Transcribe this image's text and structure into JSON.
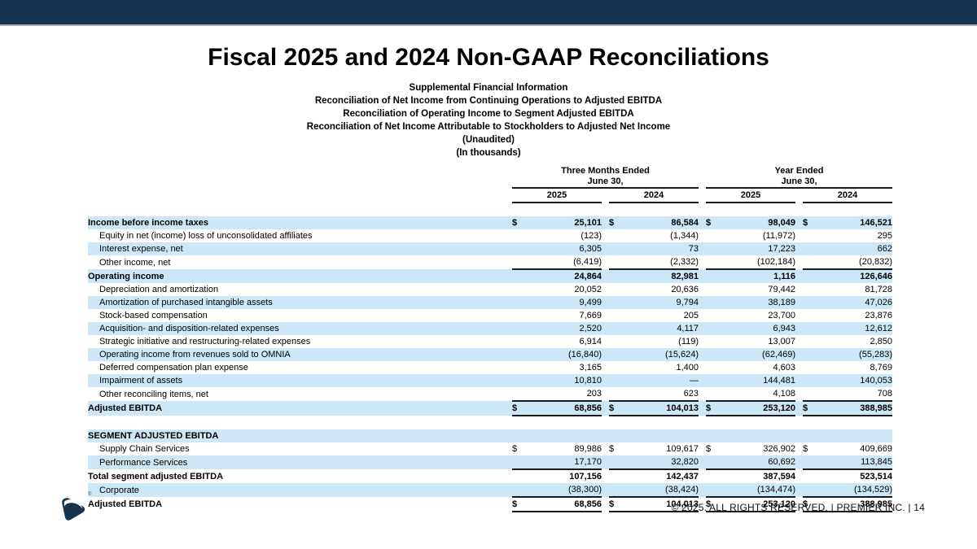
{
  "page": {
    "title": "Fiscal 2025 and 2024 Non-GAAP Reconciliations",
    "subtitle_lines": [
      "Supplemental Financial Information",
      "Reconciliation of Net Income from Continuing Operations to Adjusted EBITDA",
      "Reconciliation of Operating Income to Segment Adjusted EBITDA",
      "Reconciliation of Net Income Attributable to Stockholders to Adjusted Net Income",
      "(Unaudited)",
      "(In thousands)"
    ],
    "footer_text": "© 2025. ALL RIGHTS RESERVED.  |  PREMIER INC.  |  14",
    "logo": {
      "name": "premier-logo",
      "registered_mark": "®"
    }
  },
  "colors": {
    "top_bar": "#17334e",
    "top_bar_underline": "#a8aeb4",
    "row_stripe": "#cce7f5",
    "rule_line": "#1a1a1a"
  },
  "table": {
    "col_groups": [
      {
        "label": "Three Months Ended",
        "sublabel": "June 30,",
        "years": [
          "2025",
          "2024"
        ]
      },
      {
        "label": "Year Ended",
        "sublabel": "June 30,",
        "years": [
          "2025",
          "2024"
        ]
      }
    ],
    "rows": [
      {
        "label": "Income before income taxes",
        "bold": true,
        "indent": false,
        "dollar": true,
        "stripe": true,
        "values": [
          "25,101",
          "86,584",
          "98,049",
          "146,521"
        ]
      },
      {
        "label": "Equity in net (income) loss of unconsolidated affiliates",
        "indent": true,
        "stripe": false,
        "values": [
          "(123)",
          "(1,344)",
          "(11,972)",
          "295"
        ]
      },
      {
        "label": "Interest expense, net",
        "indent": true,
        "stripe": true,
        "values": [
          "6,305",
          "73",
          "17,223",
          "662"
        ]
      },
      {
        "label": "Other income, net",
        "indent": true,
        "stripe": false,
        "line_below": true,
        "values": [
          "(6,419)",
          "(2,332)",
          "(102,184)",
          "(20,832)"
        ]
      },
      {
        "label": "Operating income",
        "bold": true,
        "stripe": true,
        "values": [
          "24,864",
          "82,981",
          "1,116",
          "126,646"
        ]
      },
      {
        "label": "Depreciation and amortization",
        "indent": true,
        "stripe": false,
        "values": [
          "20,052",
          "20,636",
          "79,442",
          "81,728"
        ]
      },
      {
        "label": "Amortization of purchased intangible assets",
        "indent": true,
        "stripe": true,
        "values": [
          "9,499",
          "9,794",
          "38,189",
          "47,026"
        ]
      },
      {
        "label": "Stock-based compensation",
        "indent": true,
        "stripe": false,
        "values": [
          "7,669",
          "205",
          "23,700",
          "23,876"
        ]
      },
      {
        "label": "Acquisition- and disposition-related expenses",
        "indent": true,
        "stripe": true,
        "values": [
          "2,520",
          "4,117",
          "6,943",
          "12,612"
        ]
      },
      {
        "label": "Strategic initiative and restructuring-related expenses",
        "indent": true,
        "stripe": false,
        "values": [
          "6,914",
          "(119)",
          "13,007",
          "2,850"
        ]
      },
      {
        "label": "Operating income from revenues sold to OMNIA",
        "indent": true,
        "stripe": true,
        "values": [
          "(16,840)",
          "(15,624)",
          "(62,469)",
          "(55,283)"
        ]
      },
      {
        "label": "Deferred compensation plan expense",
        "indent": true,
        "stripe": false,
        "values": [
          "3,165",
          "1,400",
          "4,603",
          "8,769"
        ]
      },
      {
        "label": "Impairment of assets",
        "indent": true,
        "stripe": true,
        "values": [
          "10,810",
          "—",
          "144,481",
          "140,053"
        ]
      },
      {
        "label": "Other reconciling items, net",
        "indent": true,
        "stripe": false,
        "line_below": true,
        "values": [
          "203",
          "623",
          "4,108",
          "708"
        ]
      },
      {
        "label": "Adjusted EBITDA",
        "bold": true,
        "dollar": true,
        "stripe": true,
        "line_below": true,
        "values": [
          "68,856",
          "104,013",
          "253,120",
          "388,985"
        ]
      },
      {
        "label": "SEGMENT ADJUSTED EBITDA",
        "bold": true,
        "stripe": true,
        "gap_before": true,
        "values": [
          "",
          "",
          "",
          ""
        ]
      },
      {
        "label": "Supply Chain Services",
        "indent": true,
        "dollar": true,
        "stripe": false,
        "values": [
          "89,986",
          "109,617",
          "326,902",
          "409,669"
        ]
      },
      {
        "label": "Performance Services",
        "indent": true,
        "stripe": true,
        "line_below": true,
        "values": [
          "17,170",
          "32,820",
          "60,692",
          "113,845"
        ]
      },
      {
        "label": "Total segment adjusted EBITDA",
        "bold": true,
        "stripe": false,
        "values": [
          "107,156",
          "142,437",
          "387,594",
          "523,514"
        ]
      },
      {
        "label": "Corporate",
        "indent": true,
        "stripe": true,
        "line_below": true,
        "values": [
          "(38,300)",
          "(38,424)",
          "(134,474)",
          "(134,529)"
        ]
      },
      {
        "label": "Adjusted EBITDA",
        "bold": true,
        "dollar": true,
        "stripe": false,
        "line_below": true,
        "values": [
          "68,856",
          "104,013",
          "253,120",
          "388,985"
        ]
      }
    ]
  }
}
